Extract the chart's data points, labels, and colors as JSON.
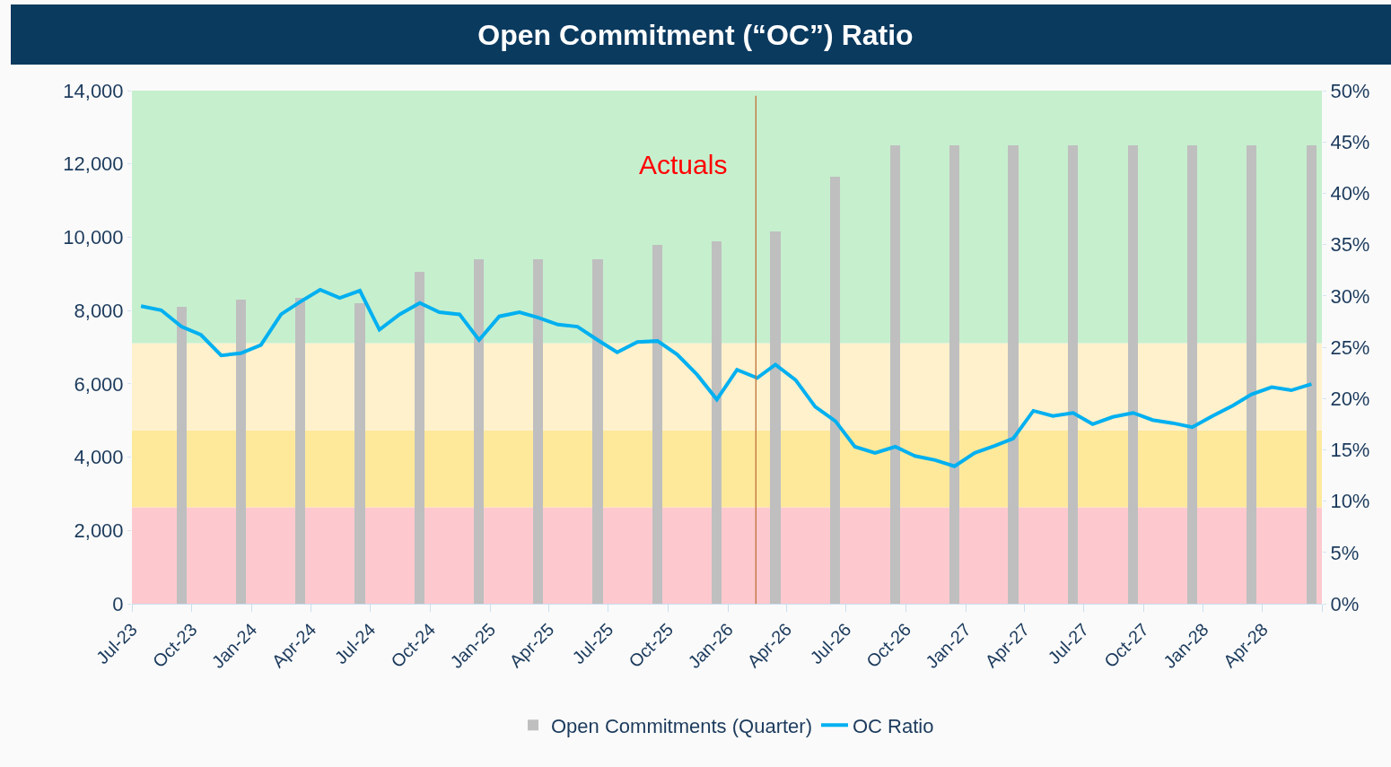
{
  "chart_data": {
    "type": "bar",
    "title": "Open Commitment (“OC”) Ratio",
    "series": [
      {
        "name": "Open Commitments (Quarter)",
        "type": "bar",
        "color": "#bfbfbf",
        "x": [
          "2023-09-15",
          "2023-12-15",
          "2024-03-15",
          "2024-06-15",
          "2024-09-15",
          "2024-12-15",
          "2025-03-15",
          "2025-06-15",
          "2025-09-15",
          "2025-12-15",
          "2026-03-15",
          "2026-06-15",
          "2026-09-15",
          "2026-12-15",
          "2027-03-15",
          "2027-06-15",
          "2027-09-15",
          "2027-12-15",
          "2028-03-15",
          "2028-06-15"
        ],
        "values": [
          8100,
          8300,
          8350,
          8200,
          9050,
          9400,
          9400,
          9400,
          9800,
          9900,
          10150,
          11650,
          12500,
          12500,
          12500,
          12500,
          12500,
          12500,
          12500,
          12500
        ]
      },
      {
        "name": "OC Ratio",
        "type": "line",
        "axis": "y2",
        "color": "#00b0f0",
        "x": [
          "2023-07-15",
          "2023-08-15",
          "2023-09-15",
          "2023-10-15",
          "2023-11-15",
          "2023-12-15",
          "2024-01-15",
          "2024-02-15",
          "2024-03-15",
          "2024-04-15",
          "2024-05-15",
          "2024-06-15",
          "2024-07-15",
          "2024-08-15",
          "2024-09-15",
          "2024-10-15",
          "2024-11-15",
          "2024-12-15",
          "2025-01-15",
          "2025-02-15",
          "2025-03-15",
          "2025-04-15",
          "2025-05-15",
          "2025-06-15",
          "2025-07-15",
          "2025-08-15",
          "2025-09-15",
          "2025-10-15",
          "2025-11-15",
          "2025-12-15",
          "2026-01-15",
          "2026-02-15",
          "2026-03-15",
          "2026-04-15",
          "2026-05-15",
          "2026-06-15",
          "2026-07-15",
          "2026-08-15",
          "2026-09-15",
          "2026-10-15",
          "2026-11-15",
          "2026-12-15",
          "2027-01-15",
          "2027-02-15",
          "2027-03-15",
          "2027-04-15",
          "2027-05-15",
          "2027-06-15",
          "2027-07-15",
          "2027-08-15",
          "2027-09-15",
          "2027-10-15",
          "2027-11-15",
          "2027-12-15",
          "2028-01-15",
          "2028-02-15",
          "2028-03-15",
          "2028-04-15",
          "2028-05-15",
          "2028-06-15"
        ],
        "values": [
          29.0,
          28.6,
          27.0,
          26.2,
          24.2,
          24.4,
          25.2,
          28.2,
          29.4,
          30.6,
          29.8,
          30.5,
          26.7,
          28.2,
          29.3,
          28.4,
          28.2,
          25.7,
          28.0,
          28.4,
          27.9,
          27.2,
          27.0,
          25.7,
          24.5,
          25.5,
          25.6,
          24.3,
          22.3,
          19.9,
          22.8,
          22.0,
          23.3,
          21.8,
          19.2,
          17.8,
          15.3,
          14.7,
          15.3,
          14.4,
          14.0,
          13.4,
          14.7,
          15.4,
          16.1,
          18.8,
          18.3,
          18.6,
          17.5,
          18.2,
          18.6,
          17.9,
          17.6,
          17.2,
          18.3,
          19.3,
          20.4,
          21.1,
          20.8,
          21.4
        ]
      }
    ],
    "xlim": [
      "2023-07-01",
      "2028-07-01"
    ],
    "xticks": [
      {
        "value": "2023-07-01",
        "label": "Jul-23"
      },
      {
        "value": "2023-10-01",
        "label": "Oct-23"
      },
      {
        "value": "2024-01-01",
        "label": "Jan-24"
      },
      {
        "value": "2024-04-01",
        "label": "Apr-24"
      },
      {
        "value": "2024-07-01",
        "label": "Jul-24"
      },
      {
        "value": "2024-10-01",
        "label": "Oct-24"
      },
      {
        "value": "2025-01-01",
        "label": "Jan-25"
      },
      {
        "value": "2025-04-01",
        "label": "Apr-25"
      },
      {
        "value": "2025-07-01",
        "label": "Jul-25"
      },
      {
        "value": "2025-10-01",
        "label": "Oct-25"
      },
      {
        "value": "2026-01-01",
        "label": "Jan-26"
      },
      {
        "value": "2026-04-01",
        "label": "Apr-26"
      },
      {
        "value": "2026-07-01",
        "label": "Jul-26"
      },
      {
        "value": "2026-10-01",
        "label": "Oct-26"
      },
      {
        "value": "2027-01-01",
        "label": "Jan-27"
      },
      {
        "value": "2027-04-01",
        "label": "Apr-27"
      },
      {
        "value": "2027-07-01",
        "label": "Jul-27"
      },
      {
        "value": "2027-10-01",
        "label": "Oct-27"
      },
      {
        "value": "2028-01-01",
        "label": "Jan-28"
      },
      {
        "value": "2028-04-01",
        "label": "Apr-28"
      },
      {
        "value": "2028-07-01",
        "label": null
      }
    ],
    "ylim": [
      0,
      14000
    ],
    "yticks": [
      {
        "value": 0,
        "label": "0"
      },
      {
        "value": 2000,
        "label": "2,000"
      },
      {
        "value": 4000,
        "label": "4,000"
      },
      {
        "value": 6000,
        "label": "6,000"
      },
      {
        "value": 8000,
        "label": "8,000"
      },
      {
        "value": 10000,
        "label": "10,000"
      },
      {
        "value": 12000,
        "label": "12,000"
      },
      {
        "value": 14000,
        "label": "14,000"
      }
    ],
    "y2lim": [
      0,
      50
    ],
    "y2ticks": [
      {
        "value": 0,
        "label": "0%"
      },
      {
        "value": 5,
        "label": "5%"
      },
      {
        "value": 10,
        "label": "10%"
      },
      {
        "value": 15,
        "label": "15%"
      },
      {
        "value": 20,
        "label": "20%"
      },
      {
        "value": 25,
        "label": "25%"
      },
      {
        "value": 30,
        "label": "30%"
      },
      {
        "value": 35,
        "label": "35%"
      },
      {
        "value": 40,
        "label": "40%"
      },
      {
        "value": 45,
        "label": "45%"
      },
      {
        "value": 50,
        "label": "50%"
      }
    ],
    "bands": [
      {
        "axis": "y2",
        "from": 0,
        "to": 9.4,
        "color": "#fdc9cf"
      },
      {
        "axis": "y2",
        "from": 9.4,
        "to": 16.9,
        "color": "#fee99b"
      },
      {
        "axis": "y2",
        "from": 16.9,
        "to": 25.4,
        "color": "#fef1cc"
      },
      {
        "axis": "y2",
        "from": 25.4,
        "to": 50,
        "color": "#c6efce"
      }
    ],
    "ref_lines": [
      {
        "axis": "x",
        "value": "2026-02-13",
        "label": "Actuals",
        "color": "#c0713a"
      }
    ],
    "grid": false,
    "legend": "bottom"
  }
}
